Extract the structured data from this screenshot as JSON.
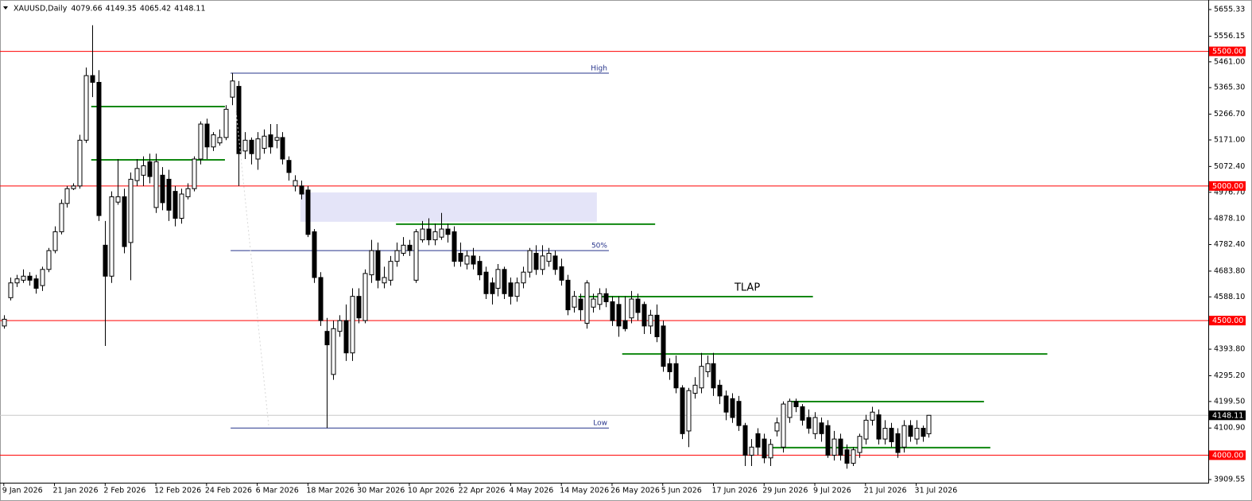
{
  "chart_data": {
    "type": "candlestick",
    "symbol": "XAUUSD,Daily",
    "up_color": "#ffffff",
    "down_color": "#000000",
    "candles": [
      [
        4480,
        4520,
        4470,
        4505
      ],
      [
        4585,
        4660,
        4575,
        4640
      ],
      [
        4640,
        4670,
        4625,
        4655
      ],
      [
        4650,
        4690,
        4640,
        4665
      ],
      [
        4665,
        4680,
        4630,
        4650
      ],
      [
        4655,
        4670,
        4600,
        4620
      ],
      [
        4630,
        4700,
        4610,
        4690
      ],
      [
        4690,
        4770,
        4680,
        4760
      ],
      [
        4760,
        4850,
        4750,
        4830
      ],
      [
        4830,
        4950,
        4820,
        4935
      ],
      [
        4935,
        5000,
        4920,
        4990
      ],
      [
        4990,
        5010,
        4985,
        5000
      ],
      [
        5000,
        5190,
        4990,
        5170
      ],
      [
        5170,
        5440,
        5160,
        5410
      ],
      [
        5410,
        5597,
        5330,
        5385
      ],
      [
        5385,
        5430,
        4870,
        4890
      ],
      [
        4780,
        4870,
        4406,
        4665
      ],
      [
        4665,
        4980,
        4640,
        4960
      ],
      [
        4940,
        5100,
        4930,
        4960
      ],
      [
        4960,
        4990,
        4750,
        4775
      ],
      [
        4790,
        5050,
        4650,
        5025
      ],
      [
        5020,
        5100,
        5000,
        5065
      ],
      [
        5040,
        5110,
        5000,
        5075
      ],
      [
        5090,
        5120,
        5010,
        5035
      ],
      [
        4920,
        5120,
        4900,
        5090
      ],
      [
        5040,
        5070,
        4910,
        4938
      ],
      [
        5025,
        5060,
        4870,
        4910
      ],
      [
        4980,
        5000,
        4850,
        4880
      ],
      [
        4880,
        4990,
        4860,
        4970
      ],
      [
        4960,
        5010,
        4950,
        4990
      ],
      [
        4990,
        5110,
        4980,
        5100
      ],
      [
        5100,
        5240,
        5080,
        5230
      ],
      [
        5230,
        5250,
        5100,
        5145
      ],
      [
        5145,
        5200,
        5130,
        5190
      ],
      [
        5160,
        5210,
        5150,
        5180
      ],
      [
        5180,
        5300,
        5170,
        5285
      ],
      [
        5330,
        5420,
        5300,
        5390
      ],
      [
        5370,
        5390,
        5000,
        5120
      ],
      [
        5130,
        5200,
        5100,
        5170
      ],
      [
        5170,
        5180,
        5080,
        5120
      ],
      [
        5100,
        5200,
        5060,
        5175
      ],
      [
        5140,
        5210,
        5120,
        5185
      ],
      [
        5190,
        5230,
        5120,
        5145
      ],
      [
        5170,
        5230,
        5140,
        5180
      ],
      [
        5180,
        5200,
        5080,
        5100
      ],
      [
        5095,
        5110,
        5020,
        5050
      ],
      [
        5000,
        5040,
        4980,
        5020
      ],
      [
        5000,
        5020,
        4950,
        4970
      ],
      [
        4985,
        5000,
        4810,
        4820
      ],
      [
        4830,
        4840,
        4640,
        4660
      ],
      [
        4660,
        4680,
        4480,
        4500
      ],
      [
        4460,
        4510,
        4101,
        4410
      ],
      [
        4300,
        4500,
        4280,
        4470
      ],
      [
        4460,
        4520,
        4440,
        4500
      ],
      [
        4500,
        4560,
        4350,
        4380
      ],
      [
        4380,
        4620,
        4350,
        4590
      ],
      [
        4590,
        4620,
        4490,
        4510
      ],
      [
        4500,
        4690,
        4490,
        4675
      ],
      [
        4670,
        4800,
        4640,
        4760
      ],
      [
        4760,
        4790,
        4620,
        4650
      ],
      [
        4640,
        4700,
        4620,
        4660
      ],
      [
        4650,
        4740,
        4630,
        4720
      ],
      [
        4720,
        4790,
        4700,
        4760
      ],
      [
        4750,
        4810,
        4740,
        4780
      ],
      [
        4780,
        4800,
        4740,
        4760
      ],
      [
        4650,
        4840,
        4640,
        4830
      ],
      [
        4800,
        4870,
        4790,
        4840
      ],
      [
        4840,
        4880,
        4780,
        4800
      ],
      [
        4800,
        4860,
        4780,
        4830
      ],
      [
        4810,
        4900,
        4800,
        4840
      ],
      [
        4840,
        4860,
        4790,
        4820
      ],
      [
        4830,
        4850,
        4700,
        4720
      ],
      [
        4750,
        4790,
        4700,
        4720
      ],
      [
        4710,
        4760,
        4690,
        4740
      ],
      [
        4740,
        4770,
        4690,
        4710
      ],
      [
        4720,
        4740,
        4650,
        4670
      ],
      [
        4680,
        4700,
        4580,
        4600
      ],
      [
        4640,
        4660,
        4560,
        4600
      ],
      [
        4620,
        4710,
        4590,
        4690
      ],
      [
        4690,
        4700,
        4580,
        4600
      ],
      [
        4640,
        4660,
        4560,
        4590
      ],
      [
        4590,
        4660,
        4570,
        4640
      ],
      [
        4640,
        4700,
        4620,
        4680
      ],
      [
        4680,
        4770,
        4660,
        4760
      ],
      [
        4750,
        4780,
        4670,
        4690
      ],
      [
        4690,
        4780,
        4670,
        4740
      ],
      [
        4720,
        4770,
        4700,
        4750
      ],
      [
        4740,
        4760,
        4670,
        4690
      ],
      [
        4700,
        4730,
        4630,
        4650
      ],
      [
        4650,
        4670,
        4520,
        4540
      ],
      [
        4550,
        4610,
        4530,
        4590
      ],
      [
        4580,
        4600,
        4500,
        4540
      ],
      [
        4490,
        4650,
        4470,
        4640
      ],
      [
        4550,
        4600,
        4530,
        4580
      ],
      [
        4560,
        4620,
        4540,
        4600
      ],
      [
        4600,
        4620,
        4550,
        4570
      ],
      [
        4570,
        4590,
        4480,
        4500
      ],
      [
        4560,
        4590,
        4440,
        4480
      ],
      [
        4500,
        4590,
        4460,
        4470
      ],
      [
        4510,
        4610,
        4490,
        4580
      ],
      [
        4580,
        4600,
        4500,
        4530
      ],
      [
        4560,
        4570,
        4450,
        4480
      ],
      [
        4480,
        4540,
        4450,
        4520
      ],
      [
        4520,
        4560,
        4420,
        4440
      ],
      [
        4480,
        4500,
        4310,
        4330
      ],
      [
        4340,
        4360,
        4280,
        4310
      ],
      [
        4340,
        4370,
        4230,
        4250
      ],
      [
        4250,
        4260,
        4060,
        4080
      ],
      [
        4090,
        4250,
        4030,
        4240
      ],
      [
        4230,
        4290,
        4210,
        4260
      ],
      [
        4250,
        4380,
        4230,
        4330
      ],
      [
        4310,
        4370,
        4290,
        4340
      ],
      [
        4340,
        4380,
        4220,
        4250
      ],
      [
        4260,
        4280,
        4190,
        4220
      ],
      [
        4220,
        4240,
        4130,
        4160
      ],
      [
        4210,
        4230,
        4120,
        4140
      ],
      [
        4200,
        4220,
        4090,
        4110
      ],
      [
        4110,
        4120,
        3960,
        4000
      ],
      [
        4000,
        4060,
        3960,
        4030
      ],
      [
        4080,
        4100,
        4000,
        4030
      ],
      [
        4060,
        4080,
        3970,
        3990
      ],
      [
        3990,
        4060,
        3960,
        4040
      ],
      [
        4090,
        4140,
        4070,
        4120
      ],
      [
        4030,
        4200,
        4010,
        4190
      ],
      [
        4140,
        4210,
        4120,
        4200
      ],
      [
        4200,
        4210,
        4160,
        4180
      ],
      [
        4180,
        4190,
        4110,
        4130
      ],
      [
        4140,
        4170,
        4080,
        4100
      ],
      [
        4080,
        4160,
        4060,
        4140
      ],
      [
        4120,
        4140,
        4050,
        4080
      ],
      [
        4110,
        4130,
        3990,
        4000
      ],
      [
        4000,
        4090,
        3980,
        4060
      ],
      [
        4060,
        4080,
        3980,
        4000
      ],
      [
        4020,
        4040,
        3950,
        3970
      ],
      [
        3970,
        4030,
        3960,
        4020
      ],
      [
        4010,
        4080,
        3990,
        4070
      ],
      [
        4060,
        4150,
        4040,
        4130
      ],
      [
        4130,
        4180,
        4110,
        4160
      ],
      [
        4150,
        4170,
        4040,
        4060
      ],
      [
        4060,
        4130,
        4040,
        4100
      ],
      [
        4100,
        4120,
        4030,
        4050
      ],
      [
        4080,
        4100,
        3990,
        4010
      ],
      [
        4030,
        4130,
        4010,
        4110
      ],
      [
        4110,
        4130,
        4050,
        4070
      ],
      [
        4060,
        4130,
        4040,
        4100
      ],
      [
        4100,
        4110,
        4050,
        4070
      ],
      [
        4079.66,
        4149.35,
        4065.42,
        4148.11
      ]
    ],
    "xlim": [
      -0.6,
      190.1
    ],
    "ylim": [
      3897.8,
      5690.8
    ],
    "xticks": [
      {
        "value": 0,
        "label": "9 Jan 2026"
      },
      {
        "value": 8,
        "label": "21 Jan 2026"
      },
      {
        "value": 16,
        "label": "2 Feb 2026"
      },
      {
        "value": 24,
        "label": "12 Feb 2026"
      },
      {
        "value": 32,
        "label": "24 Feb 2026"
      },
      {
        "value": 40,
        "label": "6 Mar 2026"
      },
      {
        "value": 48,
        "label": "18 Mar 2026"
      },
      {
        "value": 56,
        "label": "30 Mar 2026"
      },
      {
        "value": 64,
        "label": "10 Apr 2026"
      },
      {
        "value": 72,
        "label": "22 Apr 2026"
      },
      {
        "value": 80,
        "label": "4 May 2026"
      },
      {
        "value": 88,
        "label": "14 May 2026"
      },
      {
        "value": 96,
        "label": "26 May 2026"
      },
      {
        "value": 104,
        "label": "5 Jun 2026"
      },
      {
        "value": 112,
        "label": "17 Jun 2026"
      },
      {
        "value": 120,
        "label": "29 Jun 2026"
      },
      {
        "value": 128,
        "label": "9 Jul 2026"
      },
      {
        "value": 136,
        "label": "21 Jul 2026"
      },
      {
        "value": 144,
        "label": "31 Jul 2026"
      }
    ],
    "yticks": [
      5655.33,
      5556.15,
      {
        "value": 5461.0,
        "label": "5461.00"
      },
      {
        "value": 5365.3,
        "label": "5365.30"
      },
      {
        "value": 5266.7,
        "label": "5266.70"
      },
      {
        "value": 5171.0,
        "label": "5171.00"
      },
      {
        "value": 5072.4,
        "label": "5072.40"
      },
      {
        "value": 4976.7,
        "label": "4976.70"
      },
      {
        "value": 4878.1,
        "label": "4878.10"
      },
      {
        "value": 4782.4,
        "label": "4782.40"
      },
      {
        "value": 4683.8,
        "label": "4683.80"
      },
      {
        "value": 4588.1,
        "label": "4588.10"
      },
      {
        "value": 4393.8,
        "label": "4393.80"
      },
      {
        "value": 4295.2,
        "label": "4295.20"
      },
      {
        "value": 4199.5,
        "label": "4199.50"
      },
      {
        "value": 4100.9,
        "label": "4100.90"
      },
      3909.55
    ],
    "levels": {
      "color": "#ff0000",
      "lines": [
        {
          "value": 5500,
          "label": "5500.00"
        },
        {
          "value": 5000,
          "label": "5000.00"
        },
        {
          "value": 4500,
          "label": "4500.00"
        },
        {
          "value": 4000,
          "label": "4000.00"
        }
      ]
    },
    "fib": {
      "color": "#27348b",
      "lines": [
        {
          "name": "High",
          "value": 5419,
          "x": [
            35.8,
            95.5
          ]
        },
        {
          "name": "50%",
          "value": 4760,
          "x": [
            35.8,
            95.5
          ]
        },
        {
          "name": "Low",
          "value": 4101,
          "x": [
            35.8,
            95.5
          ]
        }
      ]
    },
    "zones": [
      {
        "y": [
          4867,
          4976
        ],
        "x": [
          46.8,
          93.6
        ],
        "color": "#e4e4f8"
      }
    ],
    "segments": {
      "color": "#118811",
      "lines": [
        {
          "value": 5295,
          "x": [
            13.8,
            34.9
          ]
        },
        {
          "value": 5097,
          "x": [
            13.8,
            34.9
          ]
        },
        {
          "value": 4858,
          "x": [
            61.9,
            102.8
          ]
        },
        {
          "value": 4589,
          "x": [
            90.7,
            127.7
          ],
          "label": "TLAP"
        },
        {
          "value": 4376,
          "x": [
            97.6,
            164.7
          ]
        },
        {
          "value": 4199,
          "x": [
            123.8,
            154.7
          ]
        },
        {
          "value": 4028,
          "x": [
            120.7,
            155.7
          ]
        }
      ]
    }
  }
}
